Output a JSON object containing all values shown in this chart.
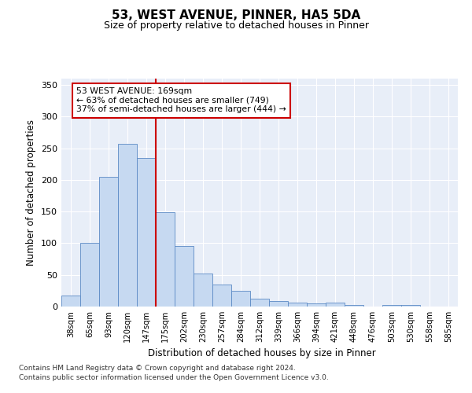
{
  "title1": "53, WEST AVENUE, PINNER, HA5 5DA",
  "title2": "Size of property relative to detached houses in Pinner",
  "xlabel": "Distribution of detached houses by size in Pinner",
  "ylabel": "Number of detached properties",
  "categories": [
    "38sqm",
    "65sqm",
    "93sqm",
    "120sqm",
    "147sqm",
    "175sqm",
    "202sqm",
    "230sqm",
    "257sqm",
    "284sqm",
    "312sqm",
    "339sqm",
    "366sqm",
    "394sqm",
    "421sqm",
    "448sqm",
    "476sqm",
    "503sqm",
    "530sqm",
    "558sqm",
    "585sqm"
  ],
  "bar_heights": [
    18,
    100,
    205,
    257,
    235,
    149,
    95,
    52,
    35,
    25,
    13,
    9,
    6,
    5,
    6,
    2,
    0,
    3,
    2,
    0,
    0
  ],
  "bar_color": "#c6d9f1",
  "bar_edge_color": "#5b8ac5",
  "vline_x": 4.5,
  "vline_color": "#cc0000",
  "annotation_text": "53 WEST AVENUE: 169sqm\n← 63% of detached houses are smaller (749)\n37% of semi-detached houses are larger (444) →",
  "annotation_box_color": "white",
  "annotation_box_edge": "#cc0000",
  "ylim": [
    0,
    360
  ],
  "yticks": [
    0,
    50,
    100,
    150,
    200,
    250,
    300,
    350
  ],
  "background_color": "#e8eef8",
  "footer1": "Contains HM Land Registry data © Crown copyright and database right 2024.",
  "footer2": "Contains public sector information licensed under the Open Government Licence v3.0."
}
